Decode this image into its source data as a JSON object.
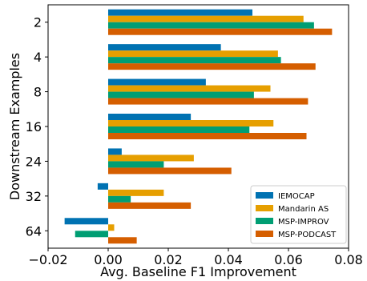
{
  "chart_data": {
    "type": "bar",
    "orientation": "horizontal",
    "categories": [
      "2",
      "4",
      "8",
      "16",
      "24",
      "32",
      "64"
    ],
    "series": [
      {
        "name": "IEMOCAP",
        "color": "#0072b2",
        "values": [
          0.048,
          0.0375,
          0.0325,
          0.0275,
          0.0045,
          -0.0035,
          -0.0145
        ]
      },
      {
        "name": "Mandarin AS",
        "color": "#e69f00",
        "values": [
          0.065,
          0.0565,
          0.054,
          0.055,
          0.0285,
          0.0185,
          0.002
        ]
      },
      {
        "name": "MSP-IMPROV",
        "color": "#009e73",
        "values": [
          0.0685,
          0.0575,
          0.0485,
          0.047,
          0.0185,
          0.0075,
          -0.011
        ]
      },
      {
        "name": "MSP-PODCAST",
        "color": "#d55e00",
        "values": [
          0.0745,
          0.069,
          0.0665,
          0.066,
          0.041,
          0.0275,
          0.0095
        ]
      }
    ],
    "xlabel": "Avg. Baseline F1 Improvement",
    "ylabel": "Downstream Examples",
    "xlim": [
      -0.02,
      0.08
    ],
    "xticks": [
      -0.02,
      0.0,
      0.02,
      0.04,
      0.06,
      0.08
    ],
    "xtick_labels": [
      "−0.02",
      "0.00",
      "0.02",
      "0.04",
      "0.06",
      "0.08"
    ],
    "legend_position": "lower-right",
    "grid": false
  }
}
